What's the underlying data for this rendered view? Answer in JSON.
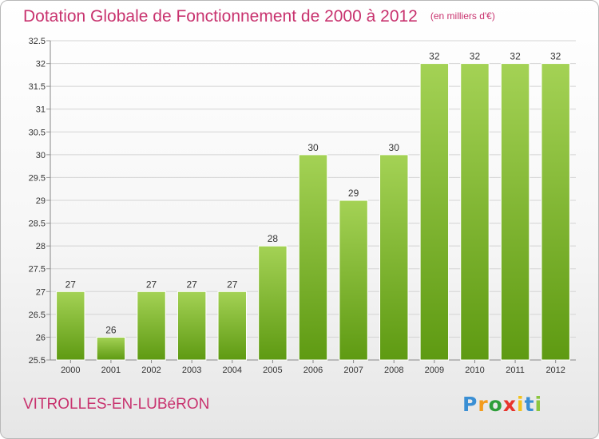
{
  "title": "Dotation Globale de Fonctionnement de 2000 à 2012",
  "subtitle": "(en milliers d'€)",
  "commune": "VITROLLES-EN-LUBéRON",
  "logo": {
    "letters": [
      "P",
      "r",
      "o",
      "x",
      "i",
      "t",
      "i"
    ],
    "colors": [
      "#3a8fd4",
      "#f39c1c",
      "#2e9e3a",
      "#e8342c",
      "#f3c21c",
      "#3a8fd4",
      "#8cc63f"
    ]
  },
  "colors": {
    "title": "#c8326e",
    "bar_top": "#a4d255",
    "bar_bottom": "#5e9a12",
    "grid": "#d4d4d4"
  },
  "chart_data": {
    "type": "bar",
    "title": "Dotation Globale de Fonctionnement de 2000 à 2012",
    "subtitle": "(en milliers d'€)",
    "categories": [
      "2000",
      "2001",
      "2002",
      "2003",
      "2004",
      "2005",
      "2006",
      "2007",
      "2008",
      "2009",
      "2010",
      "2011",
      "2012"
    ],
    "values": [
      27,
      26,
      27,
      27,
      27,
      28,
      30,
      29,
      30,
      32,
      32,
      32,
      32
    ],
    "data_labels": [
      "27",
      "26",
      "27",
      "27",
      "27",
      "28",
      "30",
      "29",
      "30",
      "32",
      "32",
      "32",
      "32"
    ],
    "ylim": [
      25.5,
      32.5
    ],
    "yticks": [
      "25.5",
      "26",
      "26.5",
      "27",
      "27.5",
      "28",
      "28.5",
      "29",
      "29.5",
      "30",
      "30.5",
      "31",
      "31.5",
      "32",
      "32.5"
    ],
    "grid": true
  }
}
